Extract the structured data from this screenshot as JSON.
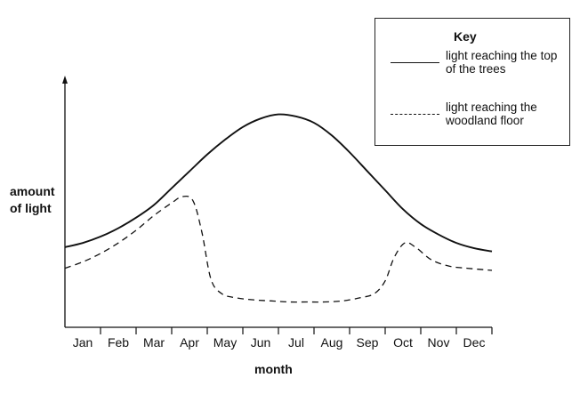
{
  "chart_data": {
    "type": "line",
    "title": "",
    "xlabel": "month",
    "ylabel": "amount of light",
    "categories": [
      "Jan",
      "Feb",
      "Mar",
      "Apr",
      "May",
      "Jun",
      "Jul",
      "Aug",
      "Sep",
      "Oct",
      "Nov",
      "Dec"
    ],
    "ylim": [
      0,
      100
    ],
    "grid": false,
    "y_ticks_shown": false,
    "legend": {
      "title": "Key",
      "placement": "top-right",
      "entries": [
        {
          "label": "light reaching the top of the trees",
          "style": "solid"
        },
        {
          "label": "light reaching the woodland floor",
          "style": "dashed"
        }
      ]
    },
    "series": [
      {
        "name": "light reaching the top of the trees",
        "style": "solid",
        "x": [
          0,
          0.5,
          1,
          1.5,
          2,
          2.5,
          3,
          3.5,
          4,
          4.5,
          5,
          5.5,
          6,
          6.5,
          7,
          7.5,
          8,
          8.5,
          9,
          9.5,
          10,
          10.5,
          11,
          11.5,
          12
        ],
        "values": [
          30,
          32,
          35,
          39,
          44,
          50,
          58,
          66,
          74,
          81,
          87,
          91,
          93,
          92,
          89,
          83,
          75,
          66,
          57,
          48,
          41,
          36,
          32,
          29.5,
          28
        ]
      },
      {
        "name": "light reaching the woodland floor",
        "style": "dashed",
        "x": [
          0,
          0.5,
          1,
          1.5,
          2,
          2.5,
          3,
          3.3,
          3.6,
          3.85,
          4.1,
          4.4,
          4.8,
          5.3,
          5.8,
          6.3,
          6.8,
          7.3,
          7.8,
          8.3,
          8.7,
          9,
          9.25,
          9.55,
          9.85,
          10.3,
          10.8,
          11.3,
          12
        ],
        "values": [
          20,
          23,
          27,
          32,
          38,
          45,
          51,
          54,
          52,
          37,
          15,
          8,
          6,
          5,
          4.5,
          4,
          4,
          4,
          4.5,
          6,
          8,
          14,
          25,
          32,
          30,
          24,
          21,
          20,
          19
        ]
      }
    ]
  }
}
